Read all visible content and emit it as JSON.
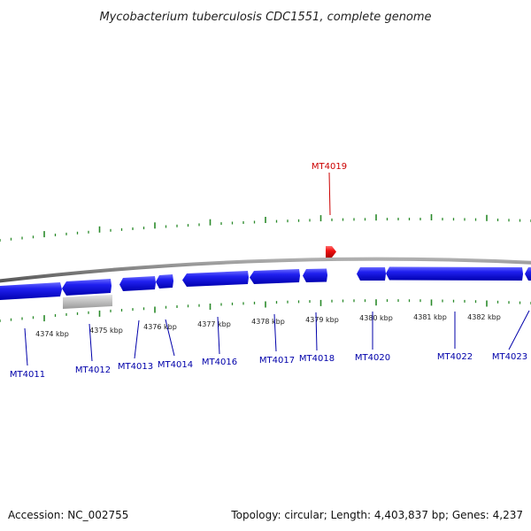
{
  "title": "Mycobacterium tuberculosis CDC1551, complete genome",
  "footer": {
    "accession": "Accession: NC_002755",
    "summary": "Topology: circular; Length: 4,403,837 bp; Genes: 4,237"
  },
  "colors": {
    "forward_gene": "#e01010",
    "reverse_gene": "#1010e0",
    "other_feature": "#bbbbbb",
    "backbone": "#888888",
    "ticks": "#2a8a2a",
    "forward_label": "#cc0000",
    "reverse_label": "#0000aa"
  },
  "scale": {
    "ticks": [
      "4374 kbp",
      "4375 kbp",
      "4376 kbp",
      "4377 kbp",
      "4378 kbp",
      "4379 kbp",
      "4380 kbp",
      "4381 kbp",
      "4382 kbp"
    ]
  },
  "genes": [
    {
      "label": "MT4011",
      "strand": "reverse"
    },
    {
      "label": "MT4012",
      "strand": "reverse"
    },
    {
      "label": "MT4013",
      "strand": "reverse"
    },
    {
      "label": "MT4014",
      "strand": "reverse"
    },
    {
      "label": "MT4016",
      "strand": "reverse"
    },
    {
      "label": "MT4017",
      "strand": "reverse"
    },
    {
      "label": "MT4018",
      "strand": "reverse"
    },
    {
      "label": "MT4019",
      "strand": "forward"
    },
    {
      "label": "MT4020",
      "strand": "reverse"
    },
    {
      "label": "MT4022",
      "strand": "reverse"
    },
    {
      "label": "MT4023",
      "strand": "reverse"
    }
  ]
}
